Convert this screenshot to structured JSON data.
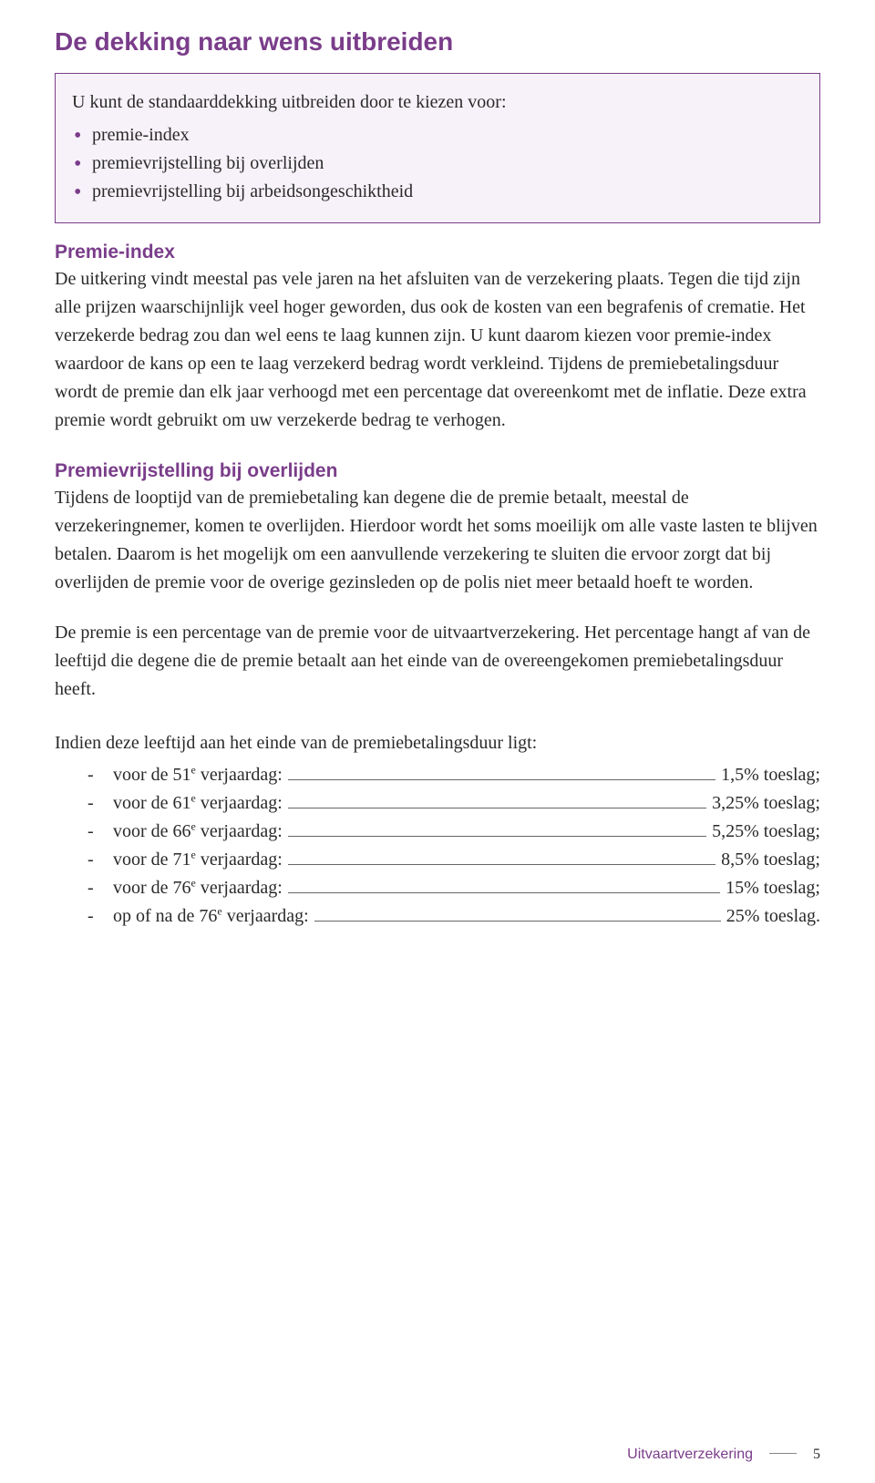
{
  "colors": {
    "accent": "#7a3d8a",
    "text": "#2a2a2a",
    "calloutBg": "#f7f2f9",
    "fillerLine": "#666666"
  },
  "title": "De dekking naar wens uitbreiden",
  "callout": {
    "intro": "U kunt de standaarddekking uitbreiden door te kiezen voor:",
    "items": [
      "premie-index",
      "premievrijstelling bij overlijden",
      "premievrijstelling bij arbeidsongeschiktheid"
    ]
  },
  "section1": {
    "heading": "Premie-index",
    "body": "De uitkering vindt meestal pas vele jaren na het afsluiten van de verzekering plaats. Tegen die tijd zijn alle prijzen waarschijnlijk veel hoger geworden, dus ook de kosten van een begrafenis of crematie. Het verzekerde bedrag zou dan wel eens te laag kunnen zijn. U kunt daarom kiezen voor premie-index waardoor de kans op een te laag verzekerd bedrag wordt verkleind. Tijdens de premie­betalingsduur wordt de premie dan elk jaar verhoogd met een percentage dat overeenkomt met de inflatie. Deze extra premie wordt gebruikt om uw ver­zekerde bedrag te verhogen."
  },
  "section2": {
    "heading": "Premievrijstelling bij overlijden",
    "body": "Tijdens de looptijd van de premiebetaling kan degene die de premie betaalt, meestal de verzekeringnemer, komen te overlijden. Hierdoor wordt het soms moeilijk om alle vaste lasten te blijven betalen. Daarom is het mogelijk om een aanvullende verzekering te sluiten die ervoor zorgt dat bij overlijden de premie voor de overige gezinsleden op de polis niet meer betaald hoeft te worden."
  },
  "para3": "De premie is een percentage van de premie voor de uitvaartverzekering. Het per­centage hangt af van de leeftijd die degene die de premie betaalt aan het einde van de overeengekomen premiebetalingsduur heeft.",
  "ageTable": {
    "intro": "Indien deze leeftijd aan het einde van de premiebetalingsduur ligt:",
    "rows": [
      {
        "label_pre": "voor de 51",
        "sup": "e",
        "label_post": " verjaardag: ",
        "value": "1,5% toeslag;"
      },
      {
        "label_pre": "voor de 61",
        "sup": "e",
        "label_post": " verjaardag: ",
        "value": "3,25% toeslag;"
      },
      {
        "label_pre": "voor de 66",
        "sup": "e",
        "label_post": " verjaardag: ",
        "value": "5,25% toeslag;"
      },
      {
        "label_pre": "voor de 71",
        "sup": "e",
        "label_post": " verjaardag: ",
        "value": "8,5% toeslag;"
      },
      {
        "label_pre": "voor de 76",
        "sup": "e",
        "label_post": " verjaardag:",
        "value": "15% toeslag;"
      },
      {
        "label_pre": "op of na de 76",
        "sup": "e",
        "label_post": " verjaardag: ",
        "value": "25% toeslag."
      }
    ]
  },
  "footer": {
    "title": "Uitvaartverzekering",
    "page": "5"
  }
}
